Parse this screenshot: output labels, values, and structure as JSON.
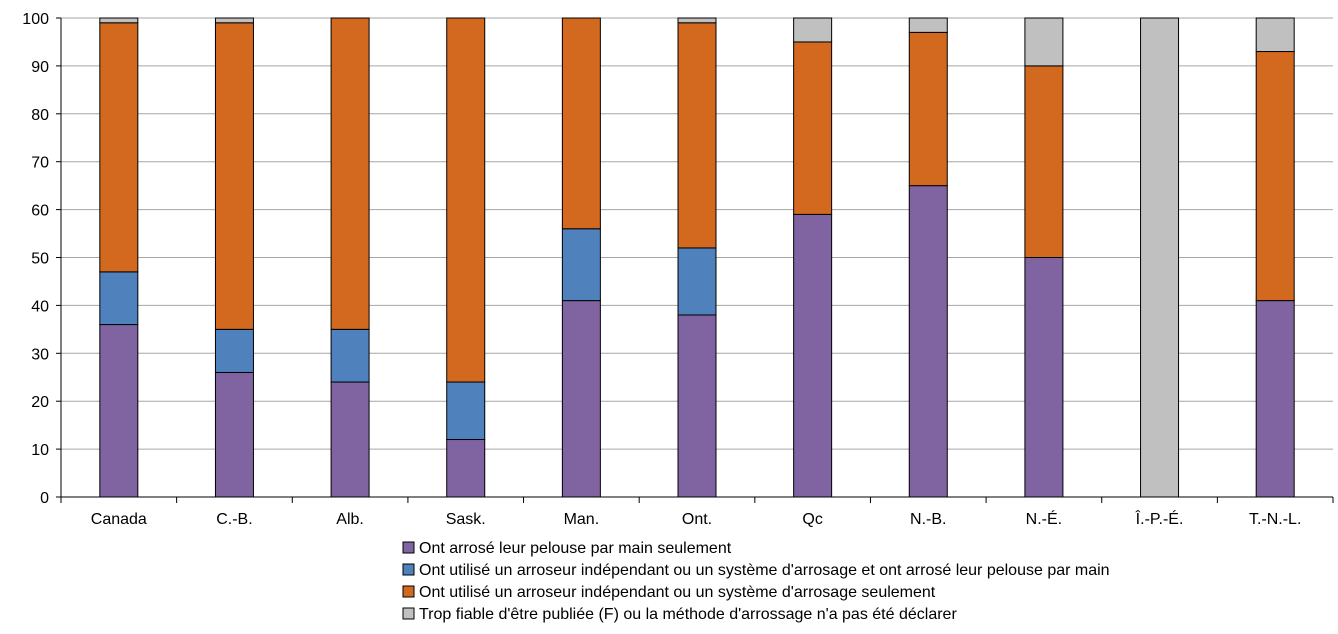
{
  "chart_data": {
    "type": "bar",
    "stacked": true,
    "title": "",
    "xlabel": "",
    "ylabel": "",
    "ylim": [
      0,
      100
    ],
    "yticks": [
      0,
      10,
      20,
      30,
      40,
      50,
      60,
      70,
      80,
      90,
      100
    ],
    "grid": true,
    "legend_position": "bottom",
    "categories": [
      "Canada",
      "C.-B.",
      "Alb.",
      "Sask.",
      "Man.",
      "Ont.",
      "Qc",
      "N.-B.",
      "N.-É.",
      "Î.-P.-É.",
      "T.-N.-L."
    ],
    "series": [
      {
        "name": "Ont arrosé leur pelouse par main seulement",
        "color": "#8064a2",
        "values": [
          36,
          26,
          24,
          12,
          41,
          38,
          59,
          65,
          50,
          0,
          41
        ]
      },
      {
        "name": "Ont utilisé un arroseur indépendant ou un système d'arrosage et ont arrosé leur pelouse par main",
        "color": "#4f81bd",
        "values": [
          11,
          9,
          11,
          12,
          15,
          14,
          0,
          0,
          0,
          0,
          0
        ]
      },
      {
        "name": "Ont utilisé un arroseur indépendant ou un système d'arrosage seulement",
        "color": "#d2691e",
        "values": [
          52,
          64,
          65,
          76,
          44,
          47,
          36,
          32,
          40,
          0,
          52
        ]
      },
      {
        "name": "Trop fiable d'être publiée (F) ou la méthode d'arrossage n'a pas été déclarer",
        "color": "#c0c0c0",
        "values": [
          1,
          1,
          0,
          0,
          0,
          1,
          5,
          3,
          10,
          100,
          7
        ]
      }
    ]
  }
}
